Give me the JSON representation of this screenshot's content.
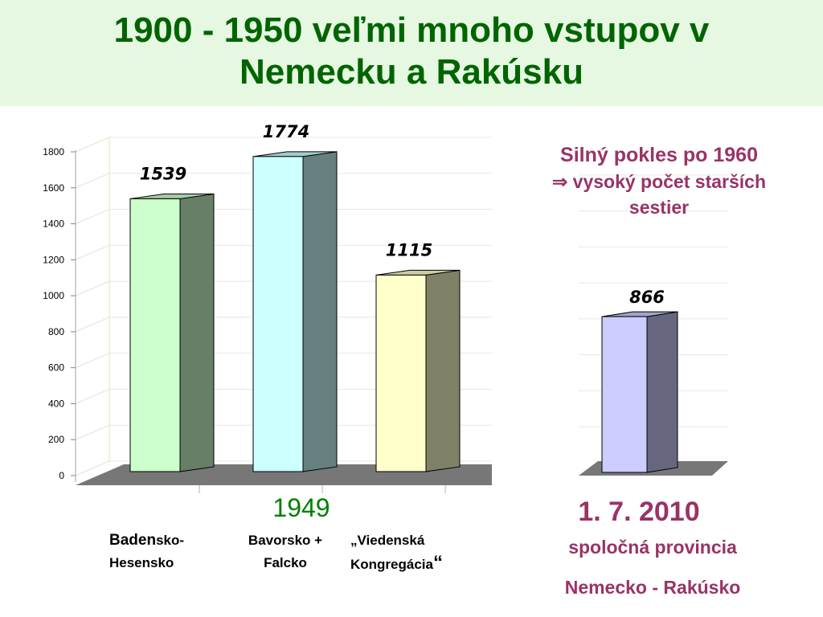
{
  "slide": {
    "title_line1": "1900 - 1950 veľmi mnoho vstupov v",
    "title_line2": "Nemecku a Rakúsku",
    "note_line1": "Silný pokles po 1960",
    "note_line2": "⇒ vysoký počet starších",
    "note_line3": "sestier",
    "year_1949": "1949",
    "cat1_line1_big": "Baden",
    "cat1_line1_rest": "sko-",
    "cat1_line2": "Hesensko",
    "cat2_line1": "Bavorsko +",
    "cat2_line2": "Falcko",
    "cat3_line1": "„Viedenská",
    "cat3_line2": "Kongregácia",
    "cat3_quote": "“",
    "date_2010": "1. 7. 2010",
    "province_line1": "spoločná provincia",
    "province_line2": "Nemecko - Rakúsko"
  },
  "colors": {
    "title": "#006400",
    "note": "#993366",
    "year": "#008000",
    "band": "#e6f8e2"
  },
  "chart_data": [
    {
      "type": "bar",
      "style": "3d",
      "categories": [
        "Baden-Hesensko",
        "Bavorsko + Falcko",
        "Viedenská Kongregácia"
      ],
      "values": [
        1539,
        1774,
        1115
      ],
      "data_labels": [
        "1539",
        "1774",
        "1115"
      ],
      "ylim": [
        0,
        1800
      ],
      "yticks": [
        "0",
        "200",
        "400",
        "600",
        "800",
        "1000",
        "1200",
        "1400",
        "1600",
        "1800"
      ],
      "colors": {
        "fronts": [
          "#ccffcc",
          "#ccffff",
          "#ffffcc"
        ],
        "sides": [
          "#667f66",
          "#668080",
          "#808066"
        ],
        "tops": [
          "#a3cca3",
          "#a3cccc",
          "#cccca3"
        ]
      },
      "grid": true
    },
    {
      "type": "bar",
      "style": "3d",
      "categories": [
        "Deutschland-Österreich"
      ],
      "values": [
        866
      ],
      "data_labels": [
        "866"
      ],
      "ylim": [
        0,
        1800
      ],
      "colors": {
        "fronts": [
          "#ccccff"
        ],
        "sides": [
          "#666680"
        ],
        "tops": [
          "#a3a3cc"
        ]
      },
      "grid": true
    }
  ]
}
